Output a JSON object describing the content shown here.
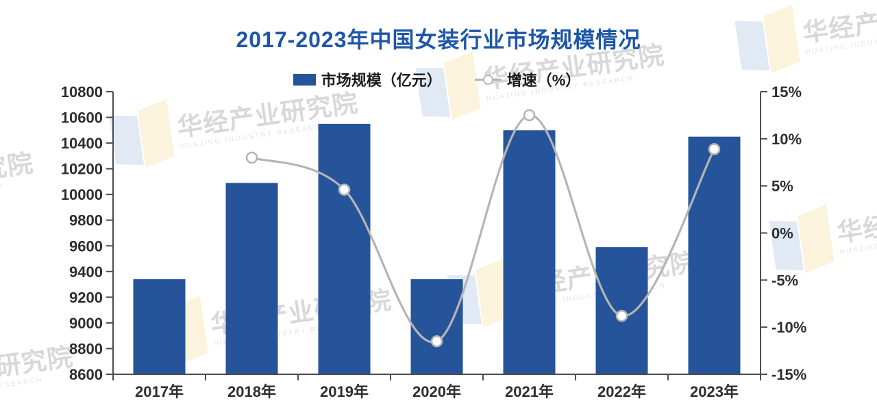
{
  "title": "2017-2023年中国女装行业市场规模情况",
  "legend": {
    "bar_label": "市场规模（亿元）",
    "line_label": "增速（%）"
  },
  "watermark": {
    "brand": "华经产业研究院",
    "subtext": "HUAJING INDUSTRY RESEARCH"
  },
  "colors": {
    "bar": "#25549b",
    "title": "#1d56a9",
    "line": "#b5b5b5",
    "marker_fill": "#ffffff",
    "axis": "#4d4d4d",
    "tick_text": "#2e2e2e"
  },
  "chart_data": {
    "type": "combo-bar-line",
    "title": "2017-2023年中国女装行业市场规模情况",
    "categories": [
      "2017年",
      "2018年",
      "2019年",
      "2020年",
      "2021年",
      "2022年",
      "2023年"
    ],
    "series": [
      {
        "name": "市场规模（亿元）",
        "type": "bar",
        "axis": "left",
        "unit": "亿元",
        "values": [
          9340,
          10090,
          10550,
          9340,
          10500,
          9590,
          10450
        ]
      },
      {
        "name": "增速（%）",
        "type": "line",
        "axis": "right",
        "unit": "%",
        "values": [
          null,
          8.0,
          4.6,
          -11.5,
          12.5,
          -8.8,
          8.9
        ]
      }
    ],
    "left_axis": {
      "min": 8600,
      "max": 10800,
      "step": 200,
      "ticks": [
        "10800",
        "10600",
        "10400",
        "10200",
        "10000",
        "9800",
        "9600",
        "9400",
        "9200",
        "9000",
        "8800",
        "8600"
      ]
    },
    "right_axis": {
      "min": -15,
      "max": 15,
      "step": 5,
      "ticks": [
        "15%",
        "10%",
        "5%",
        "0%",
        "-5%",
        "-10%",
        "-15%"
      ]
    },
    "legend_position": "top",
    "grid": false
  }
}
